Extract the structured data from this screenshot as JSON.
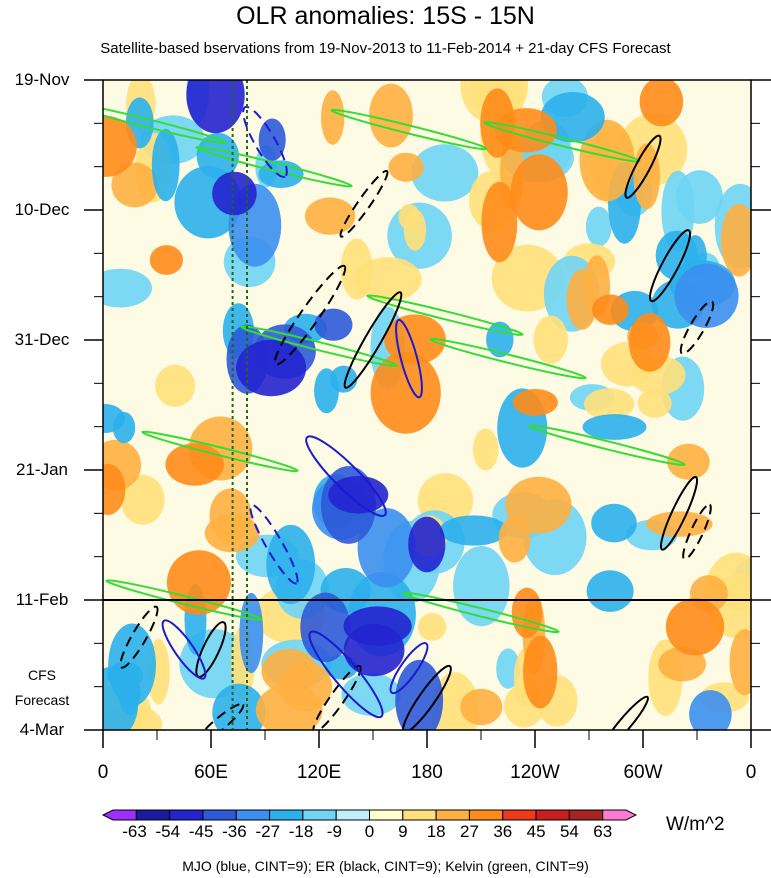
{
  "chart_data": {
    "type": "heatmap",
    "title": "OLR anomalies: 15S - 15N",
    "subtitle": "Satellite-based bservations from 19-Nov-2013 to 11-Feb-2014 + 21-day CFS Forecast",
    "x_axis": {
      "quantity": "longitude",
      "tick_labels": [
        "0",
        "60E",
        "120E",
        "180",
        "120W",
        "60W",
        "0"
      ],
      "tick_values_deg_east": [
        0,
        60,
        120,
        180,
        240,
        300,
        360
      ],
      "range": [
        0,
        360
      ]
    },
    "y_axis": {
      "quantity": "time",
      "tick_labels": [
        "19-Nov",
        "10-Dec",
        "31-Dec",
        "21-Jan",
        "11-Feb",
        "4-Mar"
      ],
      "tick_values_days_from_start": [
        0,
        21,
        42,
        63,
        84,
        105
      ],
      "range_days": [
        0,
        105
      ],
      "direction": "time increases downward"
    },
    "observation_end_label": "11-Feb",
    "forecast_label_line1": "CFS",
    "forecast_label_line2": "Forecast",
    "colorbar": {
      "levels": [
        -63,
        -54,
        -45,
        -36,
        -27,
        -18,
        -9,
        0,
        9,
        18,
        27,
        36,
        45,
        54,
        63
      ],
      "colors": [
        "#9b30ff",
        "#1a1aa0",
        "#2323cf",
        "#2e5ad8",
        "#3b8ff0",
        "#2bb0ec",
        "#6fd4f5",
        "#c2eefc",
        "#ffffd2",
        "#ffe07a",
        "#ffb040",
        "#ff8c1a",
        "#ee3a1a",
        "#c81e1e",
        "#a52323",
        "#ff7ad7"
      ],
      "units": "W/m^2"
    },
    "contours_note": "MJO (blue, CINT=9); ER (black, CINT=9); Kelvin (green, CINT=9)"
  }
}
